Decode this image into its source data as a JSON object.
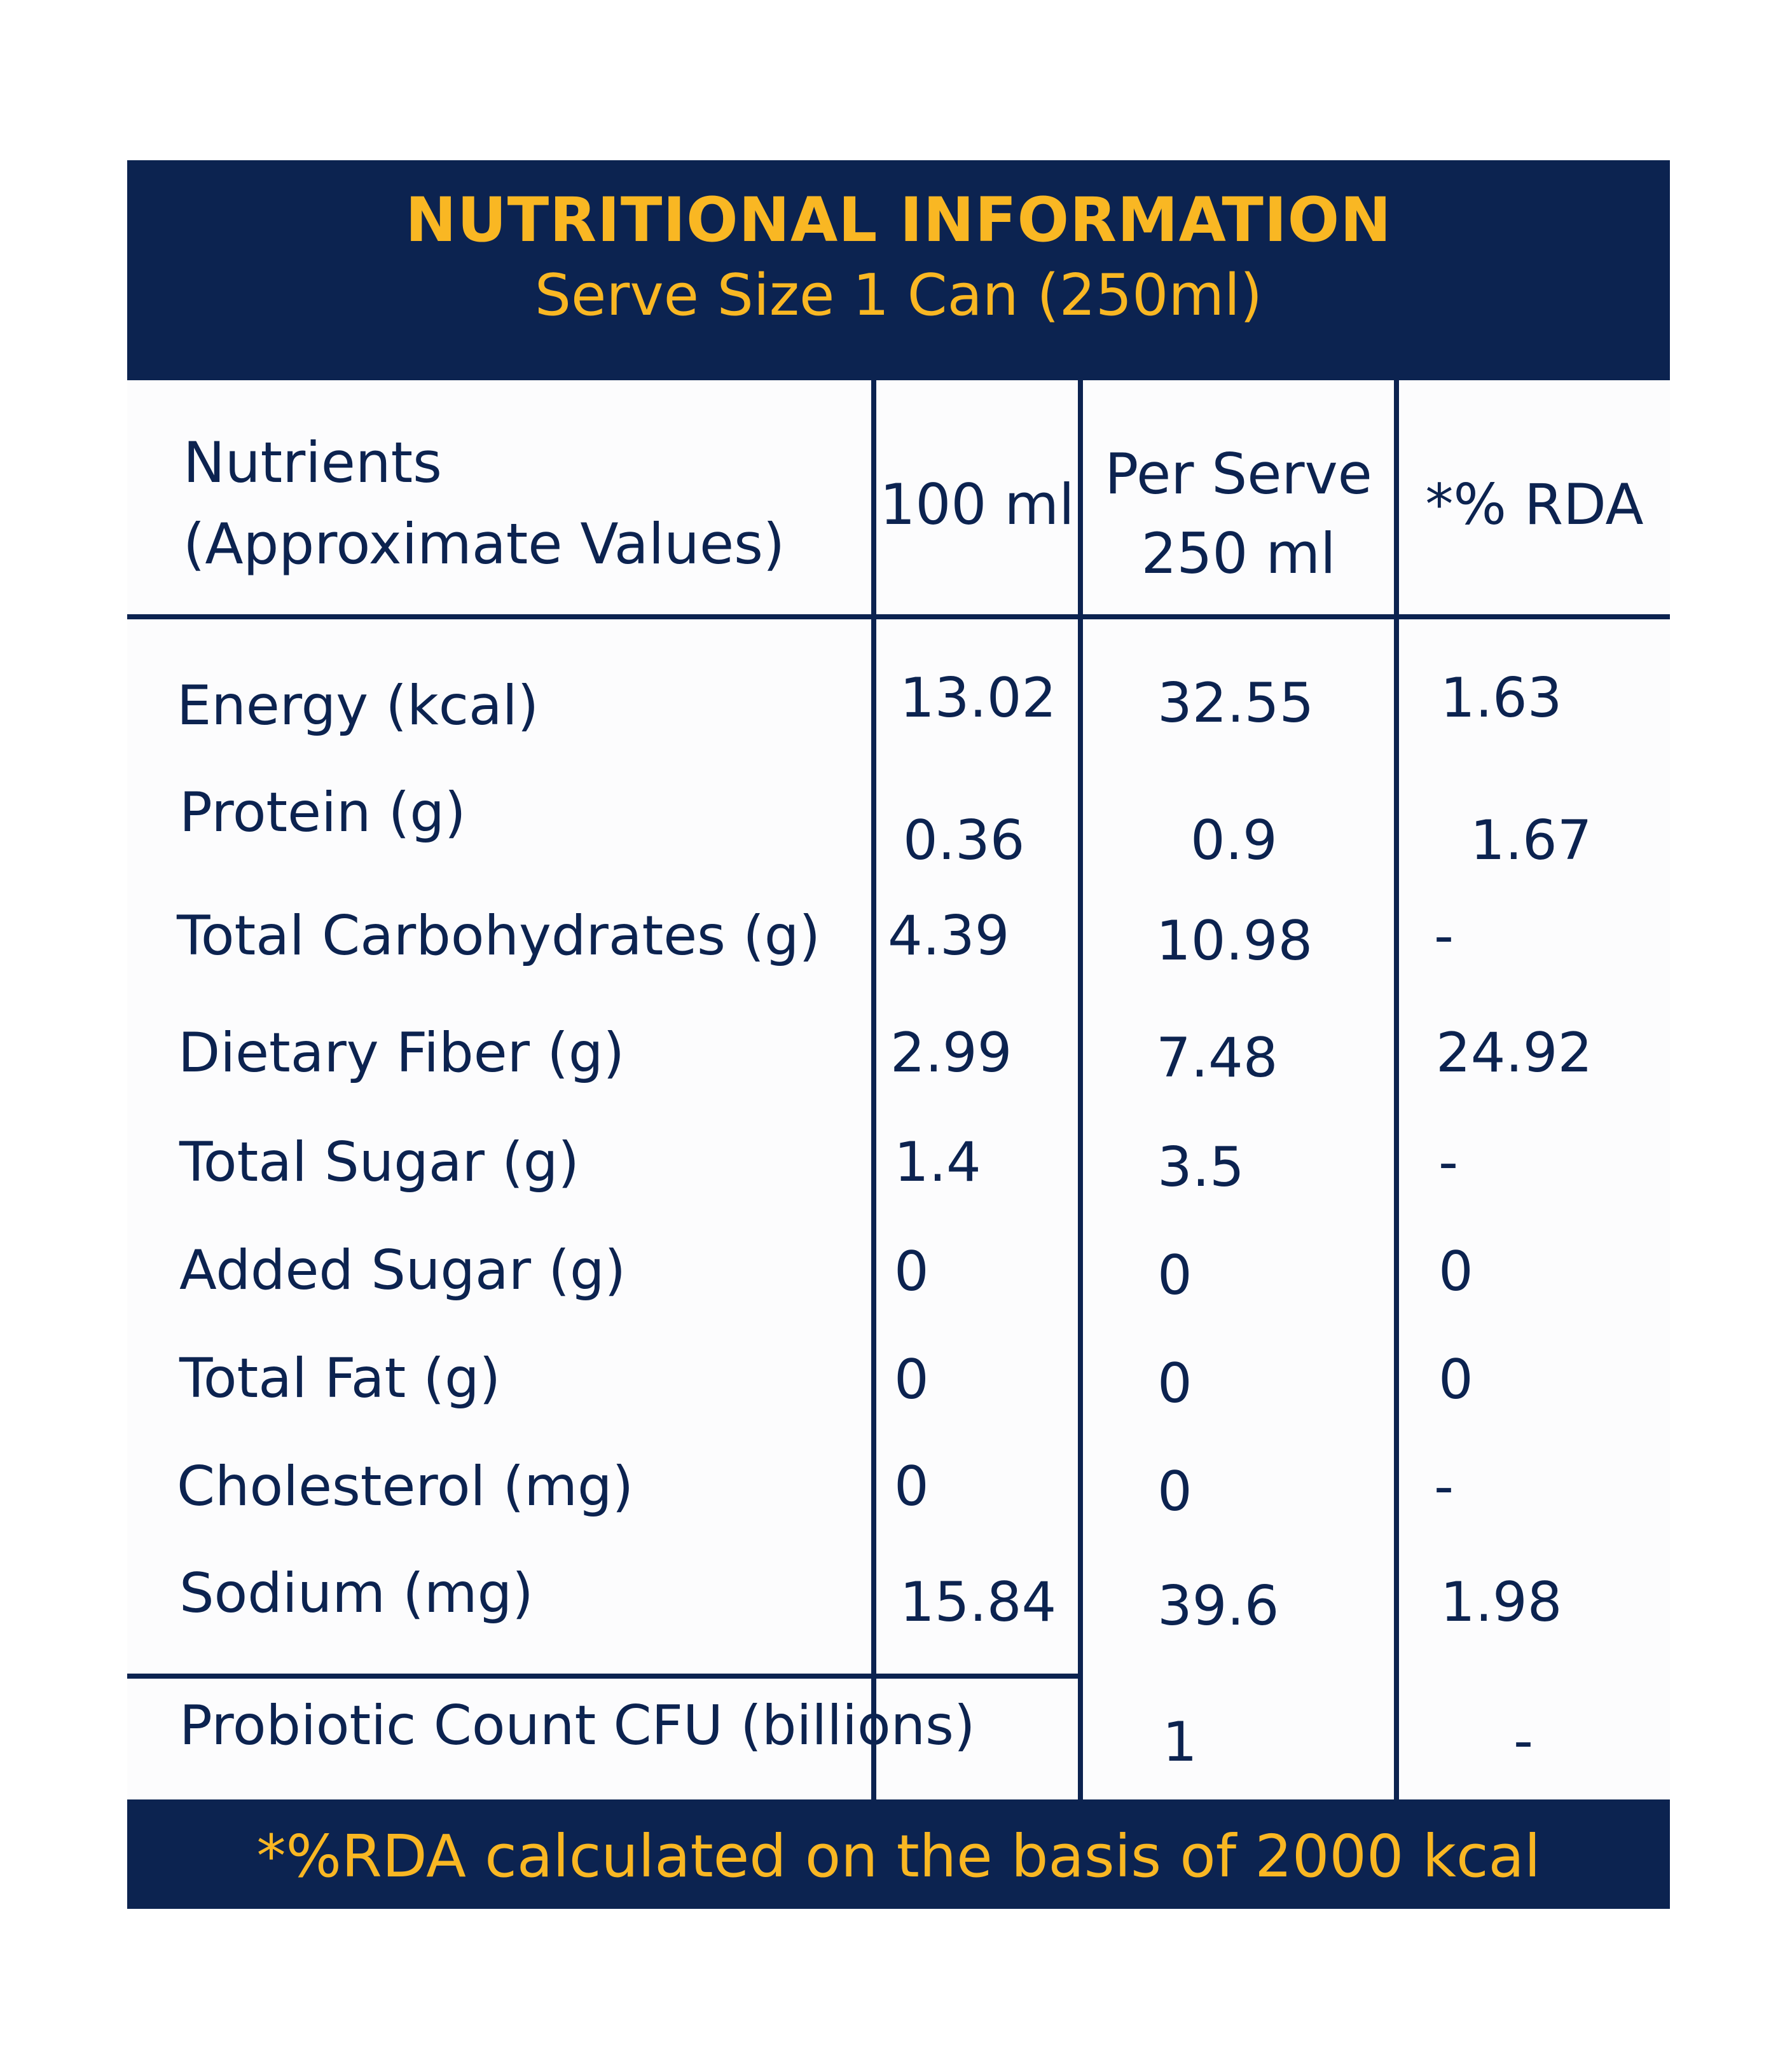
{
  "title": "NUTRITIONAL INFORMATION",
  "subtitle": "Serve Size 1 Can (250ml)",
  "columns": {
    "nutrients_line1": "Nutrients",
    "nutrients_line2": "(Approximate Values)",
    "per_100ml": "100 ml",
    "per_serve_line1": "Per Serve",
    "per_serve_line2": "250 ml",
    "rda": "*% RDA"
  },
  "rows": [
    {
      "name": "Energy (kcal)",
      "per_100ml": "13.02",
      "per_serve": "32.55",
      "rda": "1.63"
    },
    {
      "name": "Protein (g)",
      "per_100ml": "0.36",
      "per_serve": "0.9",
      "rda": "1.67"
    },
    {
      "name": "Total Carbohydrates (g)",
      "per_100ml": "4.39",
      "per_serve": "10.98",
      "rda": "-"
    },
    {
      "name": "Dietary Fiber (g)",
      "per_100ml": "2.99",
      "per_serve": "7.48",
      "rda": "24.92"
    },
    {
      "name": "Total Sugar (g)",
      "per_100ml": "1.4",
      "per_serve": "3.5",
      "rda": "-"
    },
    {
      "name": "Added Sugar (g)",
      "per_100ml": "0",
      "per_serve": "0",
      "rda": "0"
    },
    {
      "name": "Total Fat (g)",
      "per_100ml": "0",
      "per_serve": "0",
      "rda": "0"
    },
    {
      "name": "Cholesterol (mg)",
      "per_100ml": "0",
      "per_serve": "0",
      "rda": "-"
    },
    {
      "name": "Sodium (mg)",
      "per_100ml": "15.84",
      "per_serve": "39.6",
      "rda": "1.98"
    }
  ],
  "probiotic": {
    "name": "Probiotic Count CFU (billions)",
    "per_serve": "1",
    "rda": "-"
  },
  "footnote": "*%RDA calculated on the basis of 2000 kcal",
  "colors": {
    "navy": "#0c2350",
    "gold": "#f9b723",
    "panel": "#fcfcfd"
  }
}
